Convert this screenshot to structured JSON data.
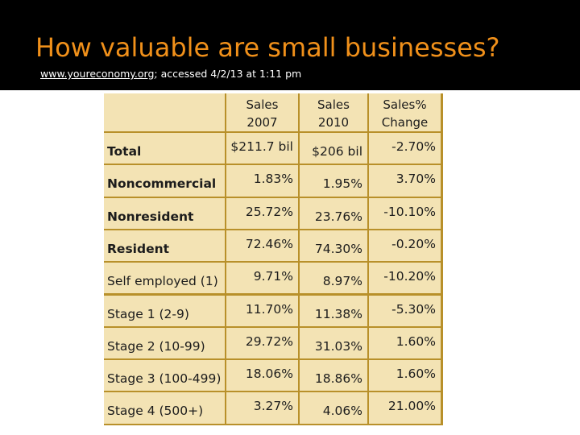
{
  "slide": {
    "title": "How valuable are small businesses?",
    "source_link": "www.youreconomy.org",
    "source_rest": "; accessed  4/2/13 at 1:11 pm"
  },
  "table": {
    "headers": [
      "",
      "Sales\n2007",
      "Sales\n2010",
      "Sales%\nChange"
    ],
    "rows": [
      {
        "label": "Total",
        "sales_2007": "$211.7 bil",
        "sales_2010": "$206 bil",
        "change": "-2.70%"
      },
      {
        "label": "Noncommercial",
        "sales_2007": "1.83%",
        "sales_2010": "1.95%",
        "change": "3.70%"
      },
      {
        "label": "Nonresident",
        "sales_2007": "25.72%",
        "sales_2010": "23.76%",
        "change": "-10.10%"
      },
      {
        "label": "Resident",
        "sales_2007": "72.46%",
        "sales_2010": "74.30%",
        "change": "-0.20%"
      },
      {
        "label": "Self employed (1)",
        "sales_2007": "9.71%",
        "sales_2010": "8.97%",
        "change": "-10.20%"
      },
      {
        "label": "Stage 1 (2-9)",
        "sales_2007": "11.70%",
        "sales_2010": "11.38%",
        "change": "-5.30%"
      },
      {
        "label": "Stage 2 (10-99)",
        "sales_2007": "29.72%",
        "sales_2010": "31.03%",
        "change": "1.60%"
      },
      {
        "label": "Stage 3 (100-499)",
        "sales_2007": "18.06%",
        "sales_2010": "18.86%",
        "change": "1.60%"
      },
      {
        "label": "Stage 4 (500+)",
        "sales_2007": "3.27%",
        "sales_2010": "4.06%",
        "change": "21.00%"
      }
    ]
  },
  "colors": {
    "title": "#f0901a",
    "header_bg": "#000000",
    "cell_bg": "#f3e3b4",
    "grid": "#b8902a"
  }
}
